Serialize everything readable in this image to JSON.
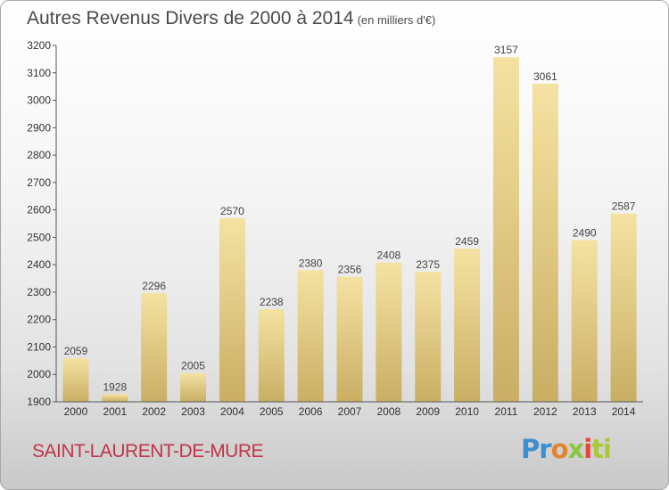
{
  "header": {
    "title": "Autres Revenus Divers de 2000 à 2014",
    "unit": "(en milliers d'€)"
  },
  "footer": {
    "town": "SAINT-LAURENT-DE-MURE",
    "logo": {
      "p1": "Pr",
      "p2": "o",
      "p3": "x",
      "p4": "i",
      "p5": "ti"
    }
  },
  "colors": {
    "bar_light": "#f5e2a2",
    "bar_dark": "#c9ae63",
    "axis": "#555555",
    "town": "#c0354a"
  },
  "chart_data": {
    "type": "bar",
    "title": "Autres Revenus Divers de 2000 à 2014",
    "subtitle": "(en milliers d'€)",
    "categories": [
      "2000",
      "2001",
      "2002",
      "2003",
      "2004",
      "2005",
      "2006",
      "2007",
      "2008",
      "2009",
      "2010",
      "2011",
      "2012",
      "2013",
      "2014"
    ],
    "values": [
      2059,
      1928,
      2296,
      2005,
      2570,
      2238,
      2380,
      2356,
      2408,
      2375,
      2459,
      3157,
      3061,
      2490,
      2587
    ],
    "ylim": [
      1900,
      3200
    ],
    "yticks": [
      1900,
      2000,
      2100,
      2200,
      2300,
      2400,
      2500,
      2600,
      2700,
      2800,
      2900,
      3000,
      3100,
      3200
    ],
    "grid": false,
    "legend": "none",
    "data_labels": true
  }
}
